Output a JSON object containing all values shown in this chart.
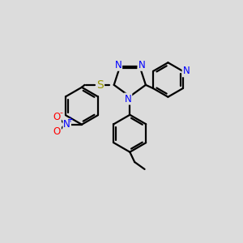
{
  "bg_color": "#dcdcdc",
  "bond_color": "#000000",
  "bond_width": 1.6,
  "atom_colors": {
    "N": "#0000FF",
    "S": "#999900",
    "O": "#FF0000",
    "C": "#000000"
  },
  "font_size": 8.5,
  "xlim": [
    -0.5,
    9.5
  ],
  "ylim": [
    -3.2,
    4.0
  ]
}
